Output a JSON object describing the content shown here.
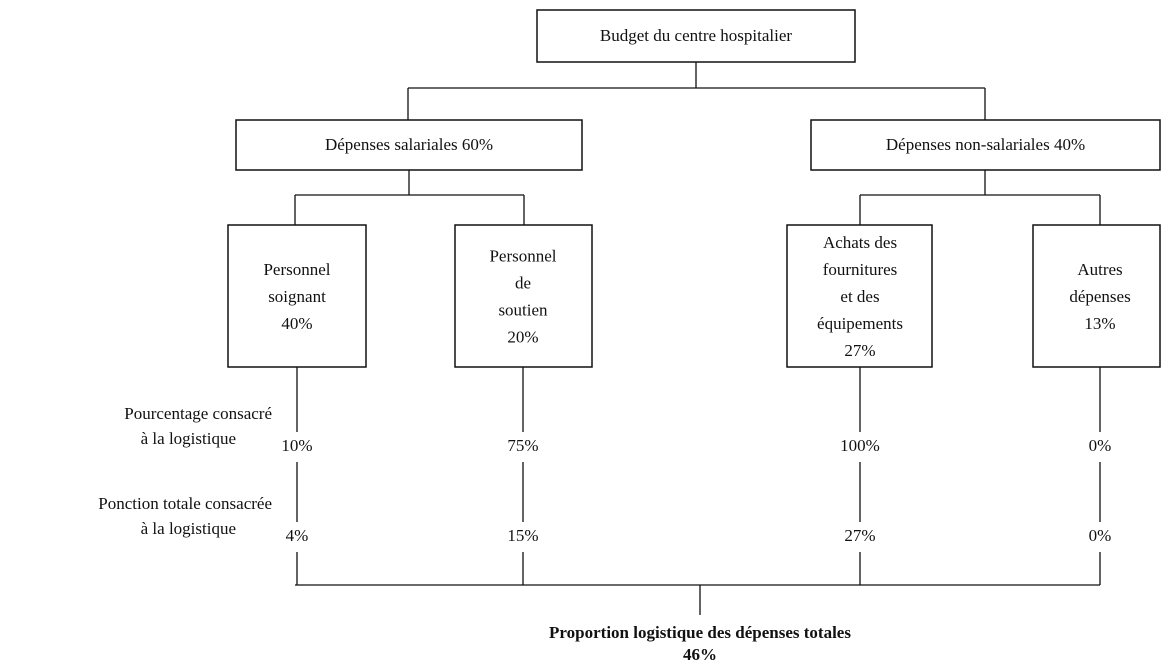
{
  "root": "Budget du centre hospitalier",
  "branches": [
    {
      "label": "Dépenses salariales 60%",
      "children": [
        {
          "lines": [
            "Personnel",
            "soignant",
            "40%"
          ]
        },
        {
          "lines": [
            "Personnel",
            "de",
            "soutien",
            "20%"
          ]
        }
      ]
    },
    {
      "label": "Dépenses non-salariales 40%",
      "children": [
        {
          "lines": [
            "Achats des",
            "fournitures",
            "et des",
            "équipements",
            "27%"
          ]
        },
        {
          "lines": [
            "Autres",
            "dépenses",
            "13%"
          ]
        }
      ]
    }
  ],
  "rows": [
    {
      "label": [
        "Pourcentage consacré",
        "à la logistique"
      ],
      "values": [
        "10%",
        "75%",
        "100%",
        "0%"
      ]
    },
    {
      "label": [
        "Ponction totale consacrée",
        "à la logistique"
      ],
      "values": [
        "4%",
        "15%",
        "27%",
        "0%"
      ]
    }
  ],
  "total": {
    "label": "Proportion logistique des dépenses totales",
    "value": "46%"
  }
}
